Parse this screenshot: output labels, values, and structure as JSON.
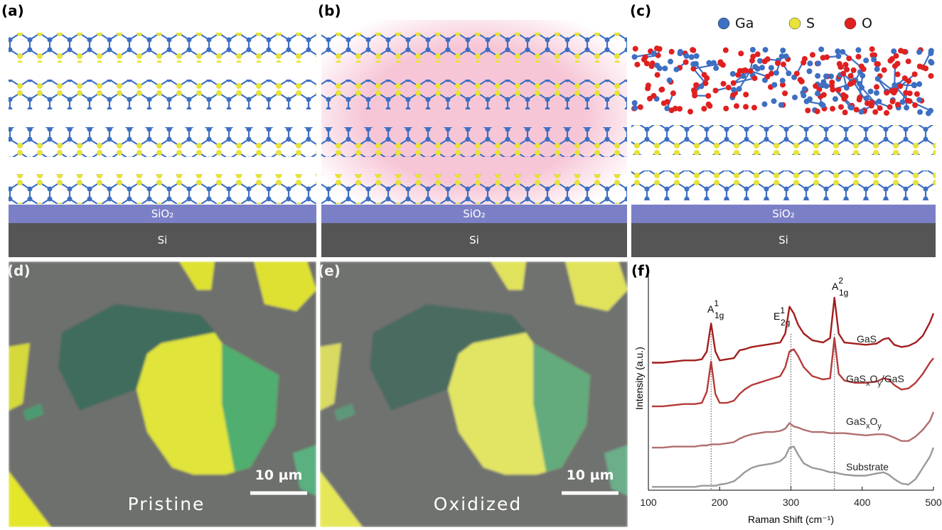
{
  "panel_labels": [
    "(a)",
    "(b)",
    "(c)",
    "(d)",
    "(e)",
    "(f)"
  ],
  "substrate": {
    "oxide": "SiO₂",
    "silicon": "Si"
  },
  "atoms": [
    {
      "name": "Ga",
      "color": "#3d6fc2"
    },
    {
      "name": "S",
      "color": "#e8e23a"
    },
    {
      "name": "O",
      "color": "#e02020"
    }
  ],
  "micrographs": [
    {
      "caption": "Pristine",
      "scale_bar": "10 µm"
    },
    {
      "caption": "Oxidized",
      "scale_bar": "10 µm"
    }
  ],
  "chart_data": {
    "type": "line",
    "xlabel": "Raman Shift (cm⁻¹)",
    "ylabel": "Intensity (a.u.)",
    "xlim": [
      100,
      500
    ],
    "xticks": [
      100,
      200,
      300,
      400,
      500
    ],
    "ylim": [
      0,
      100
    ],
    "x": [
      105,
      120,
      135,
      150,
      165,
      175,
      182,
      188,
      194,
      200,
      210,
      220,
      228,
      235,
      245,
      255,
      265,
      275,
      285,
      292,
      298,
      304,
      310,
      318,
      330,
      345,
      355,
      361,
      367,
      375,
      390,
      405,
      420,
      430,
      437,
      445,
      455,
      465,
      475,
      485,
      495,
      500
    ],
    "series": [
      {
        "name": [
          {
            "text": "GaS"
          }
        ],
        "color": "#a31d1d",
        "values": [
          57,
          57,
          57.5,
          58,
          58,
          58.5,
          62,
          74.5,
          62,
          58,
          58.5,
          59,
          62.5,
          63,
          64,
          64.5,
          65,
          65.5,
          66,
          70,
          82,
          79,
          74,
          70,
          67,
          66,
          68,
          86,
          70,
          66,
          65.5,
          65,
          65.5,
          67.5,
          68,
          65,
          64,
          64.5,
          66,
          69,
          75,
          79
        ]
      },
      {
        "name": [
          {
            "text": "GaS"
          },
          {
            "sub": "x"
          },
          {
            "text": "O"
          },
          {
            "sub": "y"
          },
          {
            "text": "/GaS"
          }
        ],
        "color": "#b53a3a",
        "values": [
          37.5,
          37.5,
          38,
          38.5,
          38.5,
          39,
          44,
          57.5,
          43,
          39,
          39,
          40,
          43,
          45,
          47,
          48,
          49,
          50,
          51,
          55,
          62,
          63,
          60,
          55,
          51,
          49.5,
          50,
          68,
          52,
          49,
          48,
          48,
          48.5,
          50,
          49.5,
          47,
          45,
          45.5,
          48,
          52,
          57,
          59
        ]
      },
      {
        "name": [
          {
            "text": "GaS"
          },
          {
            "sub": "x"
          },
          {
            "text": "O"
          },
          {
            "sub": "y"
          }
        ],
        "color": "#b06e6e",
        "values": [
          19,
          19,
          19.5,
          19.5,
          19.5,
          20,
          20,
          20.5,
          20.5,
          20.5,
          21,
          21.5,
          23,
          24,
          25,
          25.5,
          26,
          26,
          26.5,
          27.5,
          30,
          28.5,
          28,
          27,
          26,
          26,
          25.5,
          25.5,
          25.5,
          25.5,
          25,
          24.5,
          25,
          25,
          24.5,
          23.5,
          22,
          22,
          24,
          27,
          31,
          35
        ]
      },
      {
        "name": [
          {
            "text": "Substrate"
          }
        ],
        "color": "#9a9a9a",
        "values": [
          1.5,
          1.5,
          1.5,
          1.5,
          1.5,
          2,
          2,
          2,
          2,
          2.5,
          3,
          4,
          6,
          8,
          10,
          11,
          11.5,
          12,
          13,
          15,
          19,
          19.5,
          16,
          12,
          10,
          9,
          8,
          8,
          7.5,
          7,
          6.5,
          6.5,
          7.5,
          8,
          7,
          5,
          3,
          2.5,
          5,
          10,
          15,
          19
        ]
      }
    ],
    "annotations": [
      {
        "base": "A",
        "sub": "1g",
        "sup": "1",
        "x": 188
      },
      {
        "base": "E",
        "sub": "2g",
        "sup": "1",
        "x": 300
      },
      {
        "base": "A",
        "sub": "1g",
        "sup": "2",
        "x": 361
      }
    ]
  }
}
